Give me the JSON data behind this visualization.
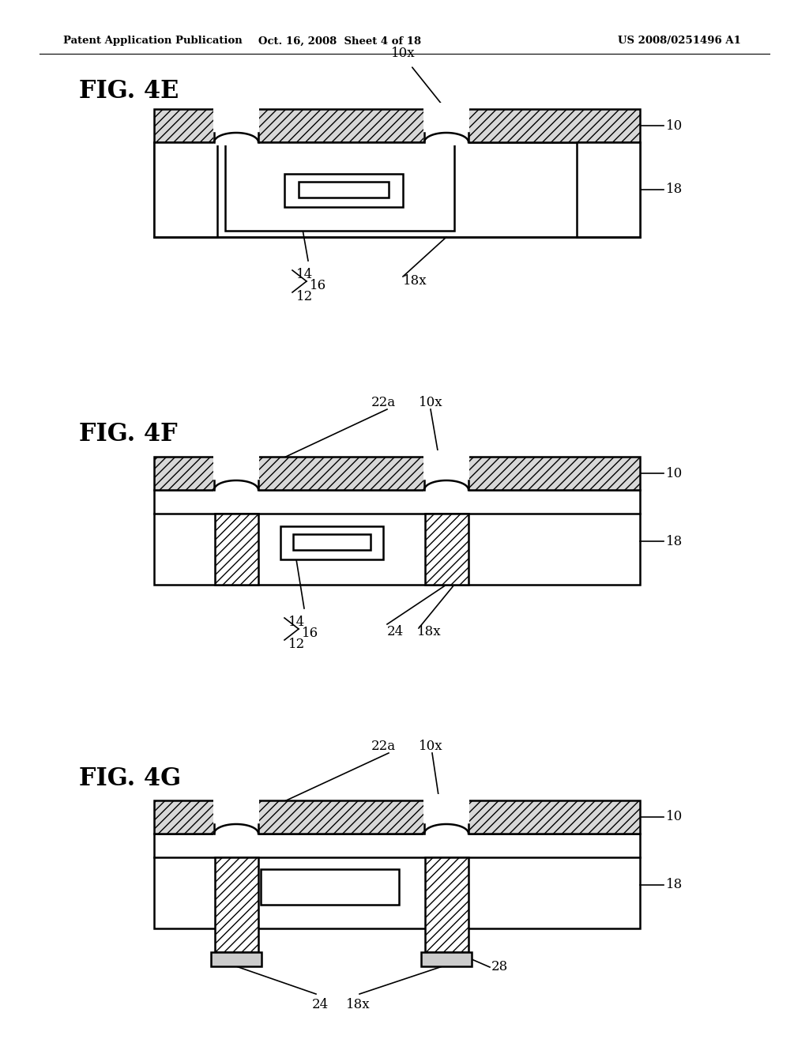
{
  "header_left": "Patent Application Publication",
  "header_mid": "Oct. 16, 2008  Sheet 4 of 18",
  "header_right": "US 2008/0251496 A1",
  "bg_color": "#ffffff",
  "line_color": "#000000"
}
